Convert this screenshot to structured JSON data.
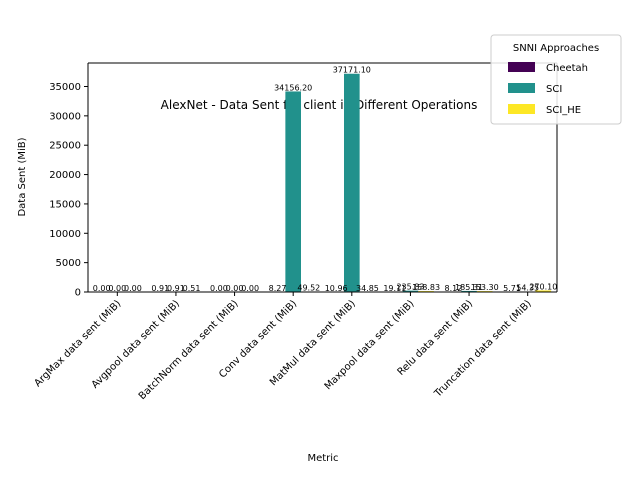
{
  "chart_data": {
    "type": "bar",
    "title": "AlexNet - Data Sent for client in Different Operations",
    "xlabel": "Metric",
    "ylabel": "Data Sent (MiB)",
    "ylim": [
      0,
      39000
    ],
    "yticks": [
      0,
      5000,
      10000,
      15000,
      20000,
      25000,
      30000,
      35000
    ],
    "categories": [
      "ArgMax data sent (MiB)",
      "Avgpool data sent (MiB)",
      "BatchNorm data sent (MiB)",
      "Conv data sent (MiB)",
      "MatMul data sent (MiB)",
      "Maxpool data sent (MiB)",
      "Relu data sent (MiB)",
      "Truncation data sent (MiB)"
    ],
    "series": [
      {
        "name": "Cheetah",
        "color": "#440154",
        "values": [
          0,
          0.91,
          0,
          8.27,
          10.96,
          19.11,
          8.12,
          5.71
        ],
        "labels": [
          "0.00",
          "0.91",
          "0.00",
          "8.27",
          "10.96",
          "19.11",
          "8.12",
          "5.71"
        ]
      },
      {
        "name": "SCI",
        "color": "#21918c",
        "values": [
          0,
          0.91,
          0,
          34156.2,
          37171.1,
          235.83,
          185.31,
          54.35
        ],
        "labels": [
          "0.00",
          "0.91",
          "0.00",
          "34156.20",
          "37171.10",
          "235.83",
          "185.31",
          "54.35"
        ]
      },
      {
        "name": "SCI_HE",
        "color": "#fde725",
        "values": [
          0,
          0.51,
          0,
          49.52,
          34.85,
          158.83,
          153.3,
          270.1
        ],
        "labels": [
          "0.00",
          "0.51",
          "0.00",
          "49.52",
          "34.85",
          "158.83",
          "153.30",
          "270.10"
        ]
      }
    ],
    "legend": {
      "title": "SNNI Approaches",
      "position": "top-right"
    },
    "grid": false
  }
}
